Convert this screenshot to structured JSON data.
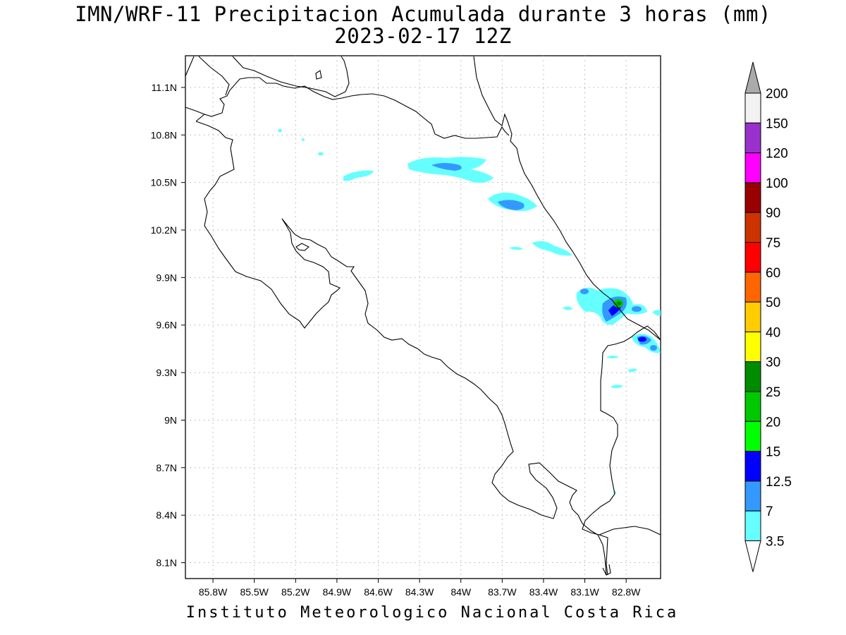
{
  "header": {
    "title": "IMN/WRF-11 Precipitacion Acumulada durante 3 horas (mm)",
    "subtitle": "2023-02-17 12Z"
  },
  "footer": {
    "credit": "Instituto Meteorologico Nacional Costa Rica"
  },
  "map": {
    "region": "Costa Rica",
    "lon_range": [
      -86.0,
      -82.55
    ],
    "lat_range": [
      8.0,
      11.3
    ],
    "grid": true,
    "lon_ticks": [
      "85.8W",
      "85.5W",
      "85.2W",
      "84.9W",
      "84.6W",
      "84.3W",
      "84W",
      "83.7W",
      "83.4W",
      "83.1W",
      "82.8W"
    ],
    "lat_ticks": [
      "11.1N",
      "10.8N",
      "10.5N",
      "10.2N",
      "9.9N",
      "9.6N",
      "9.3N",
      "9N",
      "8.7N",
      "8.4N",
      "8.1N"
    ]
  },
  "legend": {
    "levels": [
      "200",
      "150",
      "120",
      "100",
      "90",
      "75",
      "60",
      "50",
      "40",
      "30",
      "25",
      "20",
      "15",
      "12.5",
      "7",
      "3.5"
    ],
    "colors": [
      "#aaaaaa",
      "#f2f2f2",
      "#9932cc",
      "#ff00ff",
      "#990000",
      "#cc3300",
      "#ff0000",
      "#ff6600",
      "#ffcc00",
      "#ffff00",
      "#008c00",
      "#00c800",
      "#00ff00",
      "#0000ff",
      "#3399ff",
      "#66ffff",
      "#ffffff"
    ]
  }
}
